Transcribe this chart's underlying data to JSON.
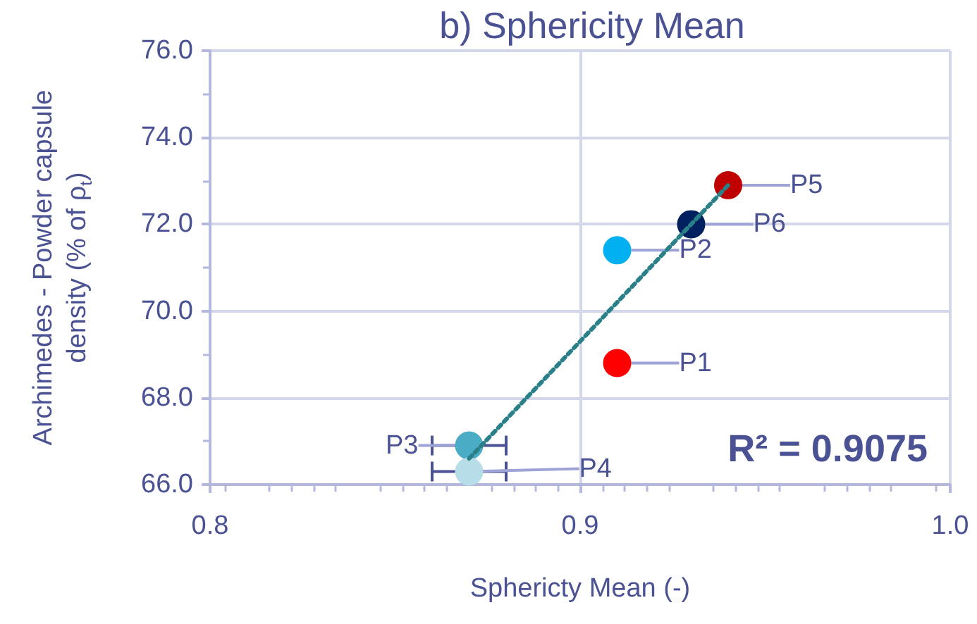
{
  "chart_data": {
    "type": "scatter",
    "title": "b) Sphericity Mean",
    "xlabel": "Sphericty Mean (-)",
    "ylabel": "Archimedes - Powder capsule density (% of ρ$_{t}$)",
    "annotations": [
      "R² = 0.9075"
    ],
    "series": [
      {
        "name": "P1",
        "color": "#ff0000",
        "x": [
          0.91
        ],
        "values": [
          68.8
        ]
      },
      {
        "name": "P2",
        "color": "#00b0f0",
        "x": [
          0.91
        ],
        "values": [
          71.4
        ]
      },
      {
        "name": "P3",
        "color": "#4bacc6",
        "x": [
          0.87
        ],
        "values": [
          66.9
        ],
        "xerrors": [
          0.01
        ]
      },
      {
        "name": "P4",
        "color": "#b7dee8",
        "x": [
          0.87
        ],
        "values": [
          66.3
        ],
        "xerrors": [
          0.01
        ]
      },
      {
        "name": "P5",
        "color": "#c00000",
        "x": [
          0.94
        ],
        "values": [
          72.9
        ]
      },
      {
        "name": "P6",
        "color": "#002060",
        "x": [
          0.93
        ],
        "values": [
          72.0
        ]
      },
      {
        "type": "line",
        "color": "#2a8088",
        "line_style": "dotted",
        "marker": "none",
        "x": [
          0.87,
          0.94
        ],
        "values": [
          66.6,
          72.9
        ]
      }
    ],
    "xlim": [
      0.8,
      1.0
    ],
    "xticks": [
      0.8,
      0.9,
      {
        "value": 1.0,
        "label": "1.0"
      }
    ],
    "ylim": [
      66,
      76
    ],
    "yticks": [
      {
        "value": 66,
        "label": "66.0"
      },
      {
        "value": 68,
        "label": "68.0"
      },
      {
        "value": 70,
        "label": "70.0"
      },
      {
        "value": 72,
        "label": "72.0"
      },
      {
        "value": 74,
        "label": "74.0"
      },
      {
        "value": 76,
        "label": "76.0"
      }
    ],
    "grid": true,
    "legend": false,
    "marker": "circle"
  }
}
